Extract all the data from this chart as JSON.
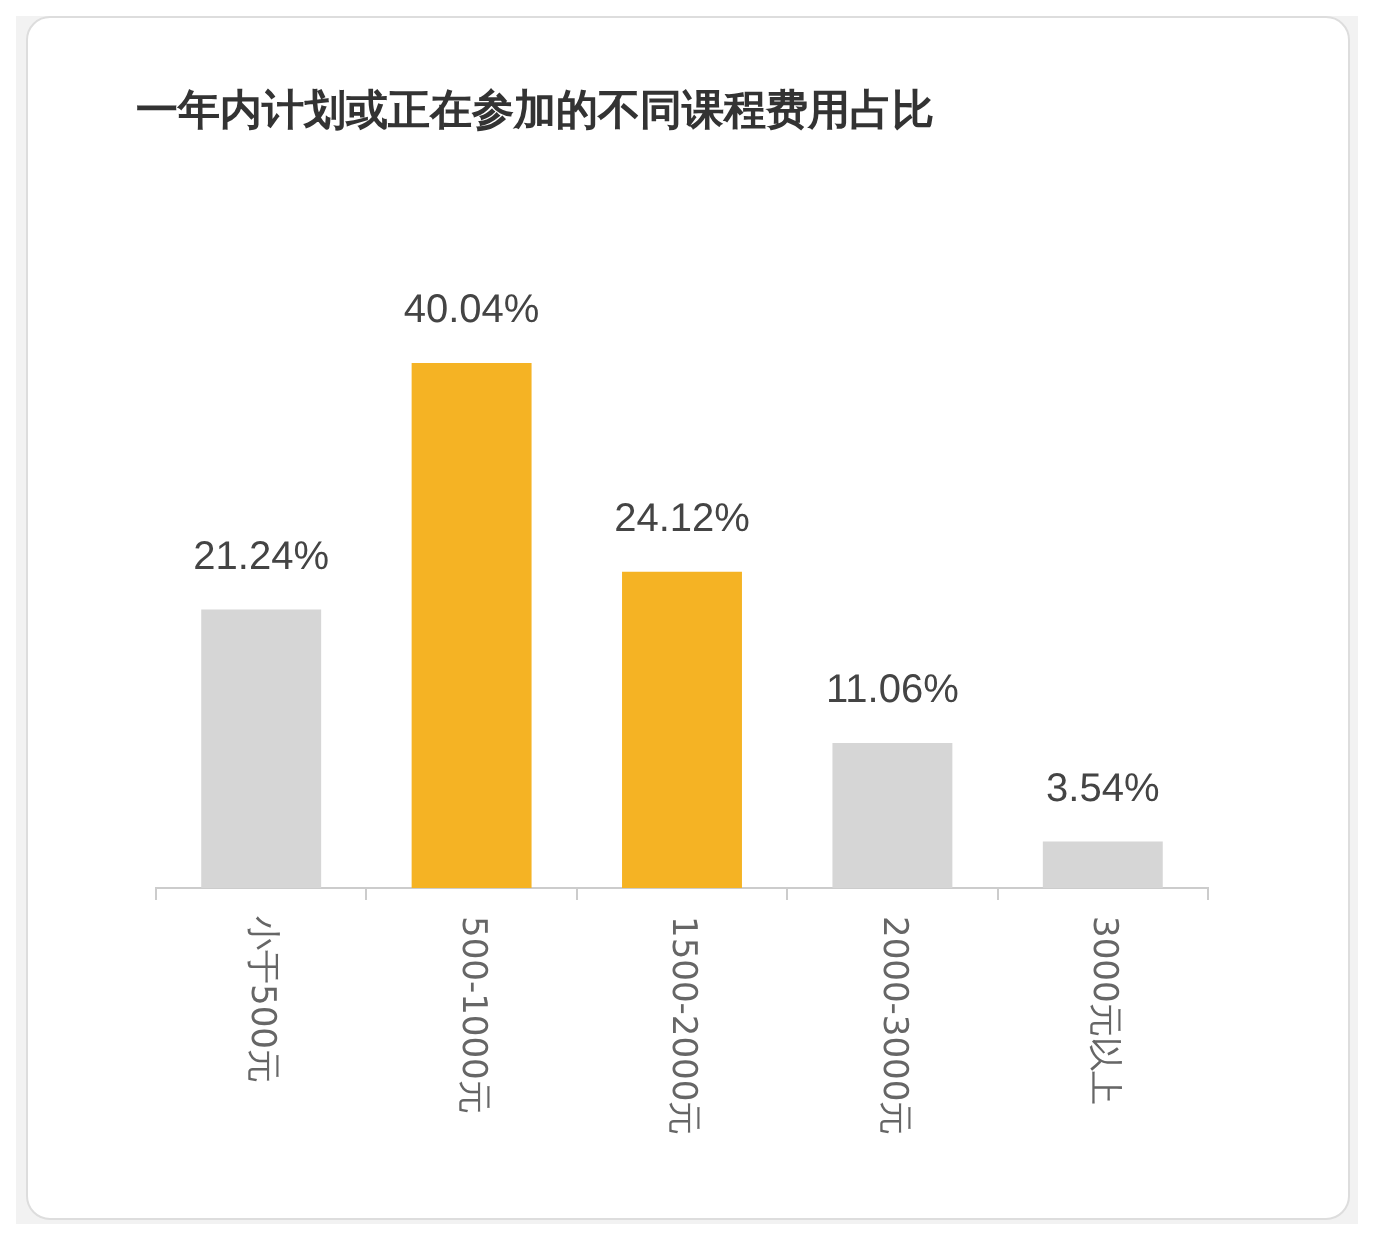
{
  "chart_data": {
    "type": "bar",
    "title": "一年内计划或正在参加的不同课程费用占比",
    "categories": [
      "小于500元",
      "500-1000元",
      "1500-2000元",
      "2000-3000元",
      "3000元以上"
    ],
    "values": [
      21.24,
      40.04,
      24.12,
      11.06,
      3.54
    ],
    "colors": [
      "#d6d6d6",
      "#f5b324",
      "#f5b324",
      "#d6d6d6",
      "#d6d6d6"
    ],
    "value_labels": [
      "21.24%",
      "40.04%",
      "24.12%",
      "11.06%",
      "3.54%"
    ]
  }
}
